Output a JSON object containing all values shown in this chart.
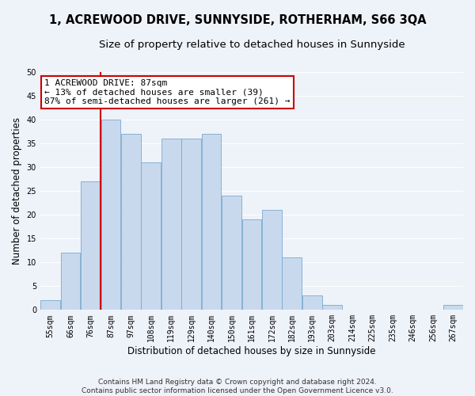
{
  "title": "1, ACREWOOD DRIVE, SUNNYSIDE, ROTHERHAM, S66 3QA",
  "subtitle": "Size of property relative to detached houses in Sunnyside",
  "xlabel": "Distribution of detached houses by size in Sunnyside",
  "ylabel": "Number of detached properties",
  "bins": [
    "55sqm",
    "66sqm",
    "76sqm",
    "87sqm",
    "97sqm",
    "108sqm",
    "119sqm",
    "129sqm",
    "140sqm",
    "150sqm",
    "161sqm",
    "172sqm",
    "182sqm",
    "193sqm",
    "203sqm",
    "214sqm",
    "225sqm",
    "235sqm",
    "246sqm",
    "256sqm",
    "267sqm"
  ],
  "bar_values": [
    2,
    12,
    27,
    40,
    37,
    31,
    36,
    36,
    37,
    24,
    19,
    21,
    11,
    3,
    1,
    0,
    0,
    0,
    0,
    0,
    1
  ],
  "bar_color": "#c8d9ee",
  "bar_edge_color": "#7aaace",
  "annotation_line": "1 ACREWOOD DRIVE: 87sqm",
  "annotation_line2": "← 13% of detached houses are smaller (39)",
  "annotation_line3": "87% of semi-detached houses are larger (261) →",
  "annotation_box_color": "white",
  "annotation_box_edge_color": "#cc0000",
  "vline_color": "#cc0000",
  "vline_x_index": 3,
  "ylim": [
    0,
    50
  ],
  "yticks": [
    0,
    5,
    10,
    15,
    20,
    25,
    30,
    35,
    40,
    45,
    50
  ],
  "footer": "Contains HM Land Registry data © Crown copyright and database right 2024.\nContains public sector information licensed under the Open Government Licence v3.0.",
  "background_color": "#eef2f9",
  "grid_color": "#ffffff",
  "title_fontsize": 10.5,
  "subtitle_fontsize": 9.5,
  "axis_label_fontsize": 8.5,
  "tick_fontsize": 7,
  "footer_fontsize": 6.5,
  "annotation_fontsize": 8
}
